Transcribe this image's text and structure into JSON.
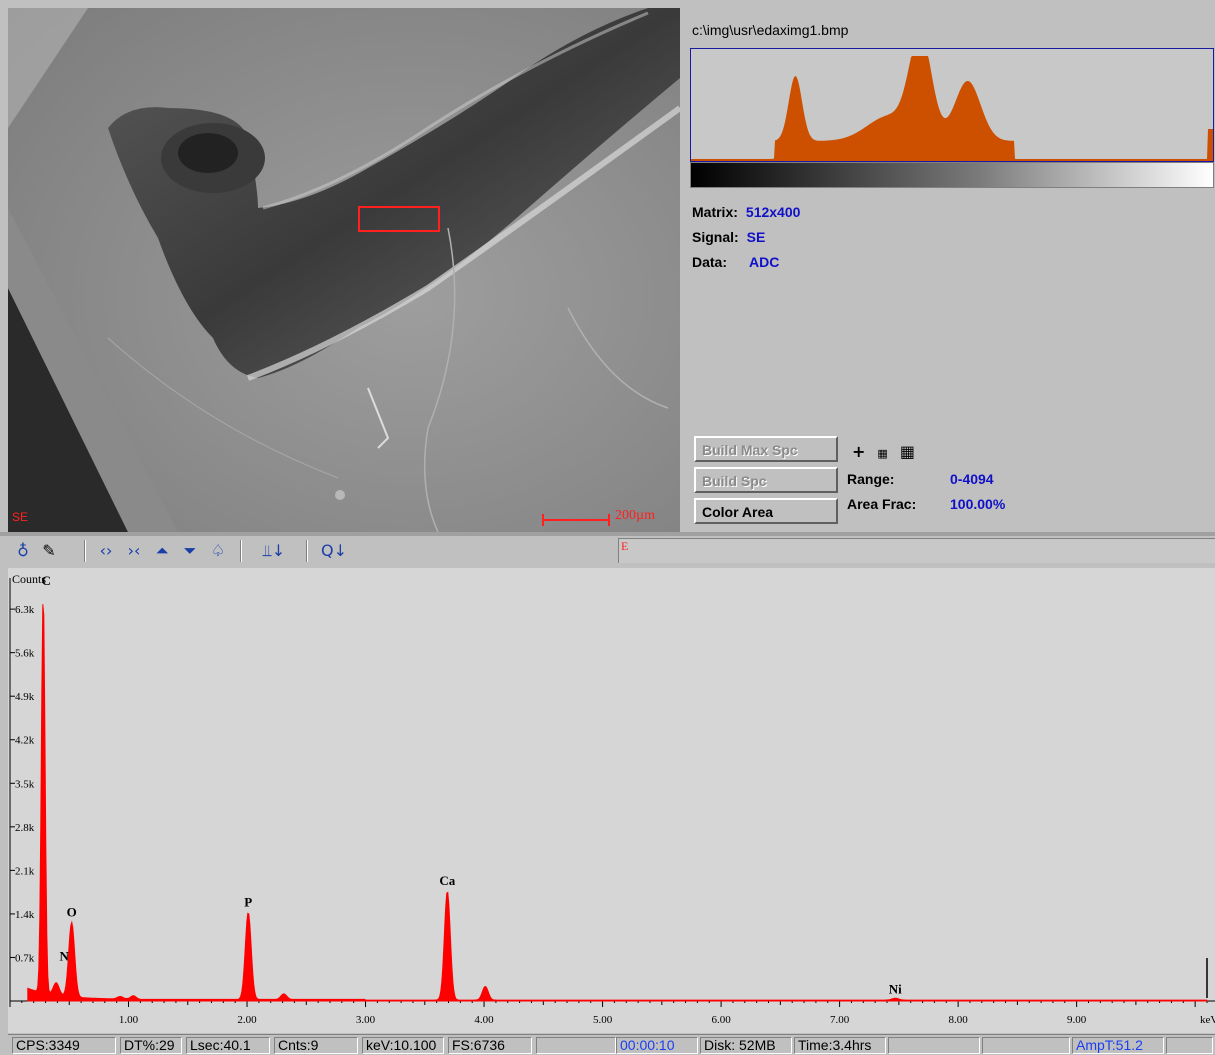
{
  "image_pane": {
    "signal_label": "SE",
    "scale_bar_text": "200µm"
  },
  "info_panel": {
    "file_path": "c:\\img\\usr\\edaximg1.bmp",
    "matrix": {
      "label": "Matrix:",
      "value": "512x400"
    },
    "signal": {
      "label": "Signal:",
      "value": "SE"
    },
    "data": {
      "label": "Data:",
      "value": "ADC"
    },
    "buttons": {
      "build_max_spc": "Build Max Spc",
      "build_spc": "Build Spc",
      "color_area": "Color Area"
    },
    "range": {
      "label": "Range:",
      "value": "0-4094"
    },
    "area_frac": {
      "label": "Area Frac:",
      "value": "100.00%"
    },
    "grid_icons": [
      "plus-icon",
      "small-grid-icon",
      "large-grid-icon"
    ]
  },
  "toolbar": {
    "icons": [
      "marker-icon",
      "eraser-icon",
      "expand-icon",
      "contract-icon",
      "peak-up-icon",
      "peak-down-icon",
      "fill-icon",
      "peak-label-icon",
      "q-icon"
    ],
    "status_marker": "E"
  },
  "chart_data": {
    "type": "line",
    "ylabel": "Counts",
    "xlabel": "keV",
    "y_ticks": [
      "0.7k",
      "1.4k",
      "2.1k",
      "2.8k",
      "3.5k",
      "4.2k",
      "4.9k",
      "5.6k",
      "6.3k"
    ],
    "x_ticks": [
      "1.00",
      "2.00",
      "3.00",
      "4.00",
      "5.00",
      "6.00",
      "7.00",
      "8.00",
      "9.00"
    ],
    "xlim": [
      0.0,
      10.1
    ],
    "ylim": [
      0,
      6736
    ],
    "peaks": [
      {
        "label": "C",
        "x": 0.28,
        "y": 6400
      },
      {
        "label": "N",
        "x": 0.39,
        "y": 200
      },
      {
        "label": "O",
        "x": 0.52,
        "y": 1200
      },
      {
        "label": "P",
        "x": 2.01,
        "y": 1400
      },
      {
        "label": "Ca",
        "x": 3.69,
        "y": 1750
      },
      {
        "label": "Ni",
        "x": 7.47,
        "y": 30
      }
    ],
    "series_color": "#ff0000"
  },
  "status_bar": {
    "cps": "CPS:3349",
    "dt": "DT%:29",
    "lsec": "Lsec:40.1",
    "cnts": "Cnts:9",
    "kev": "keV:10.100",
    "fs": "FS:6736",
    "timer": "00:00:10",
    "disk": "Disk:  52MB",
    "time": "Time:3.4hrs",
    "ampt": "AmpT:51.2"
  },
  "colors": {
    "panel_bg": "#c0c0c0",
    "blue_value": "#1010c8",
    "histogram": "#cc5000",
    "spectrum": "#ff0000",
    "sem_marker": "#ff2020"
  }
}
